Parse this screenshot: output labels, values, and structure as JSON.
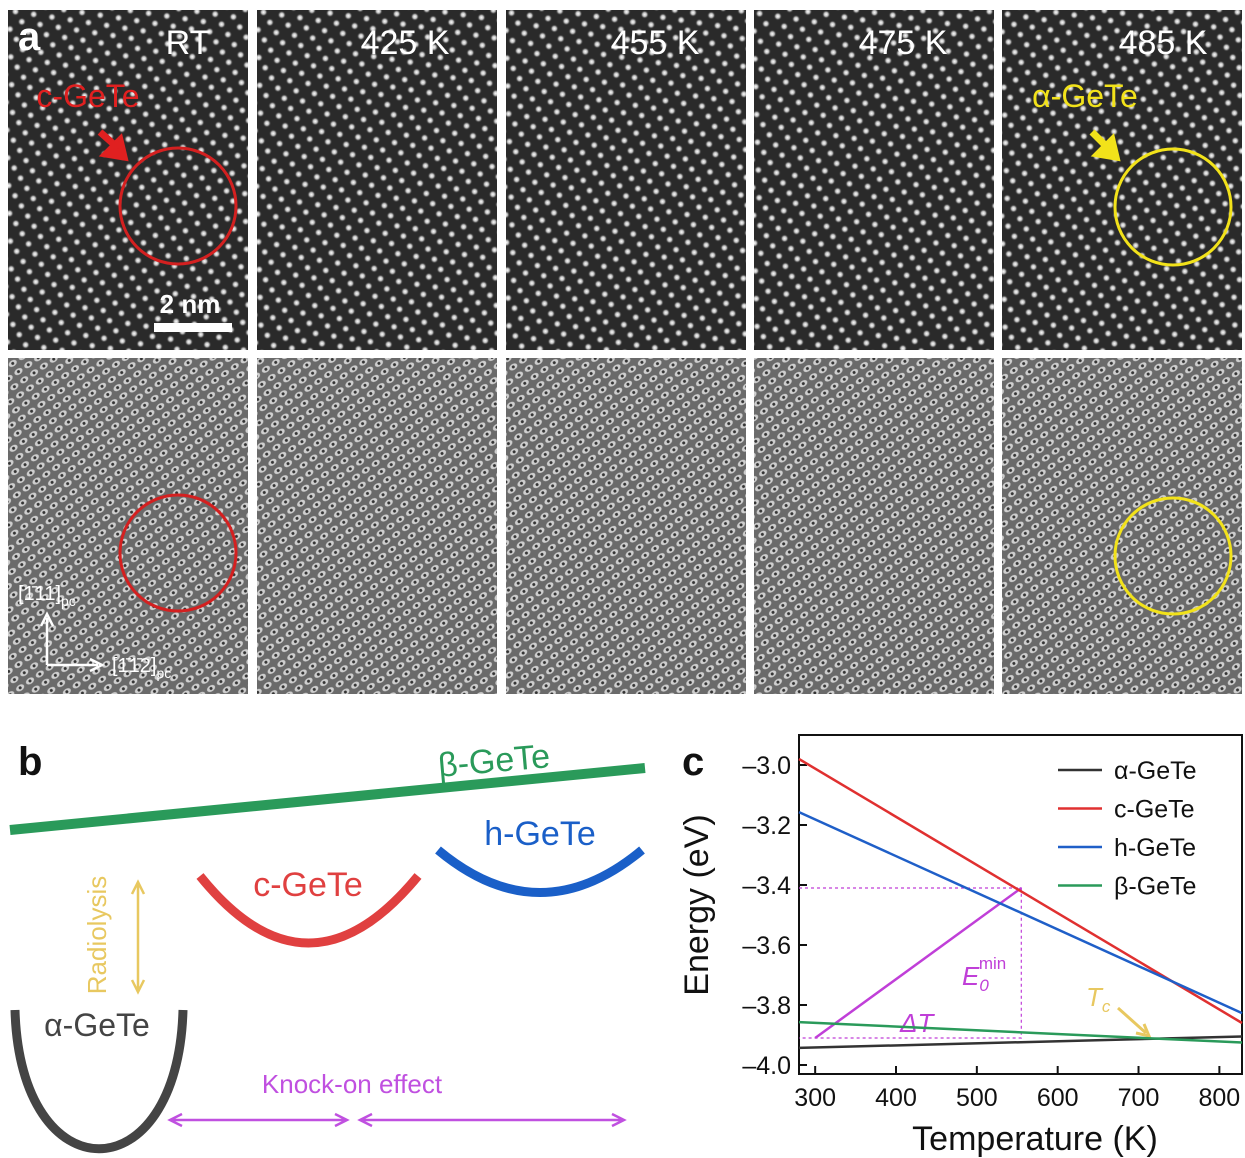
{
  "panel_a": {
    "label": "a",
    "temperatures": [
      "RT",
      "425 K",
      "455 K",
      "475 K",
      "485 K"
    ],
    "c_phase": "c-GeTe",
    "a_phase": "α-GeTe",
    "scale_bar": "2 nm",
    "dir_up": "[1̄11]",
    "dir_right": "[1̄1̄2]",
    "dir_sub": "pc"
  },
  "panel_b": {
    "label": "b",
    "beta": "β-GeTe",
    "h": "h-GeTe",
    "c": "c-GeTe",
    "alpha": "α-GeTe",
    "radiolysis": "Radiolysis",
    "knock_on": "Knock-on effect"
  },
  "chart_data": {
    "type": "line",
    "label": "c",
    "x_label": "Temperature (K)",
    "y_label": "Energy (eV)",
    "xlim": [
      280,
      828
    ],
    "ylim": [
      -4.03,
      -2.9
    ],
    "xticks": [
      300,
      400,
      500,
      600,
      700,
      800
    ],
    "yticks": [
      {
        "value": -3.0,
        "label": "–3.0"
      },
      {
        "value": -3.2,
        "label": "–3.2"
      },
      {
        "value": -3.4,
        "label": "–3.4"
      },
      {
        "value": -3.6,
        "label": "–3.6"
      },
      {
        "value": -3.8,
        "label": "–3.8"
      },
      {
        "value": -4.0,
        "label": "–4.0"
      }
    ],
    "x": [
      280,
      828
    ],
    "series": [
      {
        "name": "α-GeTe",
        "color": "#333333",
        "values": [
          -3.943,
          -3.905
        ]
      },
      {
        "name": "c-GeTe",
        "color": "#e03030",
        "values": [
          -2.98,
          -3.86
        ]
      },
      {
        "name": "h-GeTe",
        "color": "#1f5fc8",
        "values": [
          -3.157,
          -3.827
        ]
      },
      {
        "name": "β-GeTe",
        "color": "#2a9a5a",
        "values": [
          -3.857,
          -3.925
        ]
      }
    ],
    "guide": {
      "color": "#c03fd8",
      "x": [
        300,
        555
      ],
      "values": [
        -3.91,
        -3.41
      ]
    },
    "emin": {
      "main": "E",
      "sub": "0",
      "sup": "min"
    },
    "delta_t": "ΔT",
    "tc": {
      "main": "T",
      "sub": "c"
    }
  }
}
